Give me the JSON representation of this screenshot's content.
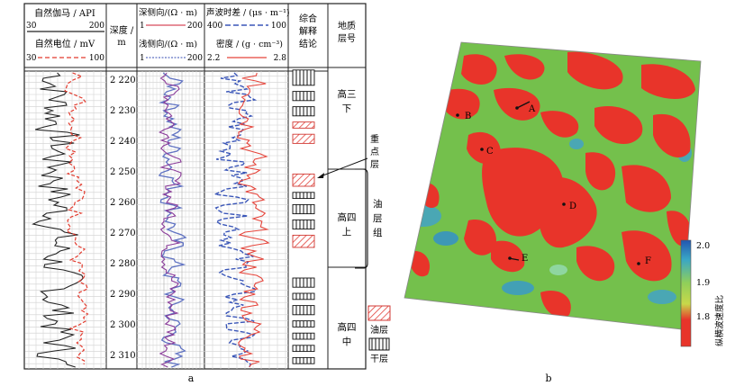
{
  "panel_a": {
    "caption": "a",
    "track1": {
      "gr_label": "自然伽马 / API",
      "gr_min": "30",
      "gr_max": "200",
      "sp_label": "自然电位 / mV",
      "sp_min": "30",
      "sp_max": "100"
    },
    "depth_header": [
      "深度 /",
      "m"
    ],
    "track3": {
      "deep_label": "深侧向/(Ω · m)",
      "deep_min": "1",
      "deep_max": "200",
      "shallow_label": "浅侧向/(Ω · m)",
      "shallow_min": "1",
      "shallow_max": "200"
    },
    "track4": {
      "ac_label": "声波时差 / (μs · m⁻¹)",
      "ac_min": "400",
      "ac_max": "100",
      "den_label": "密度 / (g · cm⁻³)",
      "den_min": "2.2",
      "den_max": "2.8"
    },
    "interp_header": [
      "综合",
      "解释",
      "结论"
    ],
    "layer_header": [
      "地质",
      "层号"
    ],
    "depth_ticks": [
      "2 220",
      "2 230",
      "2 240",
      "2 250",
      "2 260",
      "2 270",
      "2 280",
      "2 290",
      "2 300",
      "2 310"
    ],
    "zones": [
      "高三\n下",
      "高四\n上",
      "高四\n中"
    ],
    "annotation_key": [
      "重",
      "点",
      "层"
    ],
    "group_label": [
      "油",
      "层",
      "组"
    ],
    "legend": {
      "oil": "油层",
      "dry": "干层"
    },
    "colors": {
      "gr": "#222222",
      "sp": "#e23b2e",
      "deep": "#d84a5c",
      "shallow": "#5f72c2",
      "ac": "#3a56b8",
      "den": "#e5443a"
    }
  },
  "panel_b": {
    "caption": "b",
    "wells": [
      "A",
      "B",
      "C",
      "D",
      "E",
      "F"
    ],
    "colorbar_title": "纵横波速度比",
    "colorbar_ticks": [
      "2.0",
      "1.9",
      "1.8"
    ],
    "colors": {
      "high": "#2f6fb5",
      "mid": "#6cc04a",
      "low": "#e8342a"
    }
  }
}
